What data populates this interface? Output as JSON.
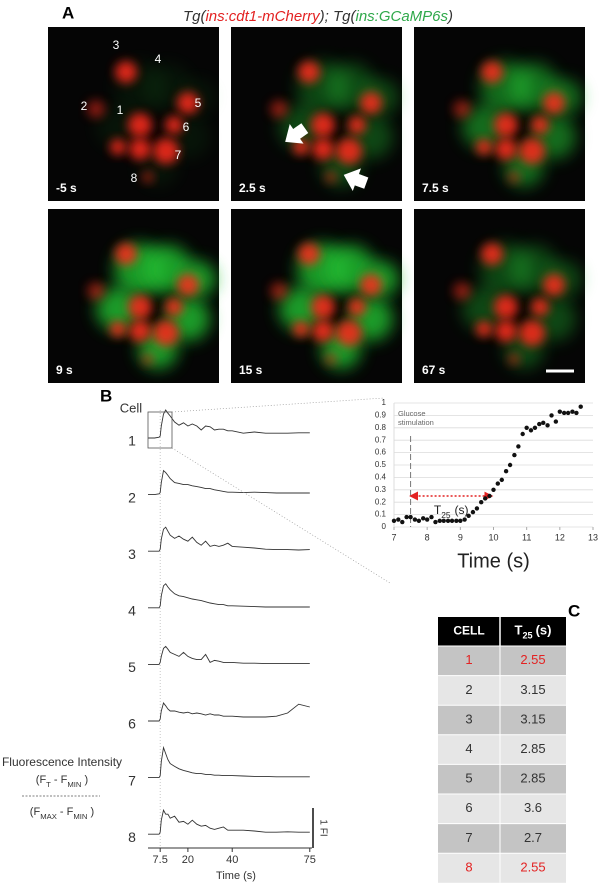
{
  "panel_labels": [
    "A",
    "B",
    "C"
  ],
  "panel_a": {
    "title_parts": [
      "Tg(",
      "ins:cdt1-mCherry",
      "); Tg(",
      "ins:GCaMP6s",
      ")"
    ],
    "title_colors": [
      "#333333",
      "#e32222",
      "#333333",
      "#2fa84a",
      "#333333"
    ],
    "frames": [
      "-5 s",
      "2.5 s",
      "7.5 s",
      "9 s",
      "15 s",
      "67 s"
    ],
    "cell_labels": [
      "3",
      "4",
      "2",
      "1",
      "5",
      "6",
      "7",
      "8"
    ]
  },
  "chart_data": [
    {
      "type": "line",
      "y_header": "Cell",
      "x_label": "Time (s)",
      "x": [
        2,
        5,
        7,
        7.5,
        8,
        9,
        10,
        11,
        12,
        14,
        16,
        18,
        20,
        22,
        24,
        26,
        28,
        30,
        32,
        34,
        36,
        38,
        40,
        45,
        50,
        55,
        60,
        65,
        70,
        75
      ],
      "xlim": [
        2,
        76
      ],
      "xticks": [
        7.5,
        20,
        40,
        75
      ],
      "stimulation_x": 7.5,
      "scale_bar": {
        "value": 1,
        "label": "1 FI"
      },
      "series": [
        {
          "name": "1",
          "color": "#333333",
          "values": [
            0,
            0,
            0.02,
            0.05,
            0.3,
            0.6,
            0.7,
            0.62,
            0.55,
            0.4,
            0.32,
            0.38,
            0.3,
            0.35,
            0.3,
            0.2,
            0.3,
            0.28,
            0.2,
            0.22,
            0.22,
            0.18,
            0.18,
            0.12,
            0.15,
            0.12,
            0.12,
            0.12,
            0.13,
            0.13
          ]
        },
        {
          "name": "2",
          "color": "#333333",
          "values": [
            0,
            0,
            0.02,
            0.05,
            0.3,
            0.6,
            0.55,
            0.48,
            0.4,
            0.3,
            0.28,
            0.25,
            0.25,
            0.22,
            0.2,
            0.18,
            0.15,
            0.15,
            0.12,
            0.1,
            0.08,
            0.06,
            0.06,
            0.05,
            0.06,
            0.05,
            0.04,
            0.04,
            0.04,
            0.04
          ]
        },
        {
          "name": "3",
          "color": "#333333",
          "values": [
            0,
            0,
            0,
            0.05,
            0.3,
            0.55,
            0.6,
            0.5,
            0.4,
            0.32,
            0.38,
            0.3,
            0.25,
            0.35,
            0.22,
            0.15,
            0.25,
            0.12,
            0.15,
            0.12,
            0.15,
            0.2,
            0.12,
            0.1,
            0.08,
            0.05,
            0.04,
            0.04,
            0.03,
            0.04
          ]
        },
        {
          "name": "4",
          "color": "#333333",
          "values": [
            0,
            0,
            0,
            0.05,
            0.3,
            0.55,
            0.6,
            0.52,
            0.45,
            0.35,
            0.3,
            0.28,
            0.25,
            0.22,
            0.2,
            0.18,
            0.15,
            0.12,
            0.1,
            0.08,
            0.08,
            0.05,
            0.05,
            0.04,
            0.03,
            0.02,
            0.02,
            0.02,
            0.02,
            0.02
          ]
        },
        {
          "name": "5",
          "color": "#333333",
          "values": [
            0,
            0,
            0,
            0.05,
            0.2,
            0.4,
            0.45,
            0.38,
            0.3,
            0.25,
            0.2,
            0.3,
            0.2,
            0.15,
            0.12,
            0.12,
            0.25,
            0.05,
            0.1,
            0.08,
            0.05,
            0.05,
            0.05,
            0.03,
            0.03,
            0.02,
            0.02,
            0.02,
            0.02,
            0.02
          ]
        },
        {
          "name": "6",
          "color": "#333333",
          "values": [
            0,
            0,
            0,
            0.05,
            0.25,
            0.45,
            0.38,
            0.3,
            0.25,
            0.25,
            0.22,
            0.2,
            0.22,
            0.18,
            0.2,
            0.18,
            0.15,
            0.18,
            0.15,
            0.15,
            0.12,
            0.12,
            0.12,
            0.1,
            0.1,
            0.1,
            0.12,
            0.2,
            0.42,
            0.35
          ]
        },
        {
          "name": "7",
          "color": "#333333",
          "values": [
            0,
            0,
            0,
            0.05,
            0.4,
            0.75,
            0.6,
            0.45,
            0.35,
            0.28,
            0.22,
            0.18,
            0.15,
            0.12,
            0.1,
            0.1,
            0.08,
            0.08,
            0.06,
            0.06,
            0.05,
            0.05,
            0.05,
            0.04,
            0.03,
            0.03,
            0.02,
            0.02,
            0.02,
            0.02
          ]
        },
        {
          "name": "8",
          "color": "#333333",
          "values": [
            0,
            0,
            0,
            0.05,
            0.35,
            0.6,
            0.5,
            0.5,
            0.4,
            0.45,
            0.3,
            0.32,
            0.25,
            0.35,
            0.25,
            0.2,
            0.22,
            0.15,
            0.12,
            0.15,
            0.18,
            0.1,
            0.1,
            0.1,
            0.08,
            0.05,
            0.05,
            0.06,
            0.05,
            0.05
          ]
        }
      ],
      "y_label": {
        "title": "Fluorescence Intensity",
        "numerator": [
          "(F",
          "T",
          " - F",
          "MIN",
          " )"
        ],
        "denominator": [
          "(F",
          "MAX",
          " - F",
          "MIN",
          " )"
        ]
      }
    },
    {
      "type": "scatter",
      "x_label": "Time (s)",
      "color": "#111111",
      "grid": true,
      "x": [
        7.0,
        7.13,
        7.25,
        7.38,
        7.5,
        7.63,
        7.75,
        7.88,
        8.0,
        8.13,
        8.25,
        8.38,
        8.5,
        8.63,
        8.75,
        8.88,
        9.0,
        9.13,
        9.25,
        9.38,
        9.5,
        9.63,
        9.75,
        9.88,
        10.0,
        10.13,
        10.25,
        10.38,
        10.5,
        10.63,
        10.75,
        10.88,
        11.0,
        11.13,
        11.25,
        11.38,
        11.5,
        11.63,
        11.75,
        11.88,
        12.0,
        12.13,
        12.25,
        12.38,
        12.5,
        12.63
      ],
      "values": [
        0.05,
        0.06,
        0.04,
        0.08,
        0.08,
        0.06,
        0.05,
        0.07,
        0.06,
        0.08,
        0.04,
        0.05,
        0.05,
        0.05,
        0.05,
        0.05,
        0.05,
        0.06,
        0.09,
        0.12,
        0.15,
        0.2,
        0.23,
        0.25,
        0.3,
        0.35,
        0.38,
        0.45,
        0.5,
        0.58,
        0.65,
        0.75,
        0.8,
        0.78,
        0.8,
        0.83,
        0.84,
        0.82,
        0.9,
        0.85,
        0.93,
        0.92,
        0.92,
        0.93,
        0.92,
        0.97
      ],
      "xlim": [
        7,
        13
      ],
      "ylim": [
        0,
        1
      ],
      "xticks": [
        7,
        8,
        9,
        10,
        11,
        12,
        13
      ],
      "yticks": [
        0,
        0.1,
        0.2,
        0.3,
        0.4,
        0.5,
        0.6,
        0.7,
        0.8,
        0.9,
        1
      ],
      "stimulation": {
        "x": 7.5,
        "label_lines": [
          "Glucose",
          "stimulation"
        ]
      },
      "t25_arrow": {
        "x": [
          7.5,
          9.95
        ],
        "y": 0.25,
        "label": "T",
        "sub": "25",
        "unit": "(s)",
        "color": "#e32222"
      }
    }
  ],
  "table": {
    "header": {
      "cell": "CELL",
      "t": "T",
      "t_sub": "25",
      "t_unit": "(s)"
    },
    "rows": [
      [
        "1",
        "2.55"
      ],
      [
        "2",
        "3.15"
      ],
      [
        "3",
        "3.15"
      ],
      [
        "4",
        "2.85"
      ],
      [
        "5",
        "2.85"
      ],
      [
        "6",
        "3.6"
      ],
      [
        "7",
        "2.7"
      ],
      [
        "8",
        "2.55"
      ]
    ],
    "highlight_rows": [
      0,
      7
    ],
    "highlight_color": "#e32222",
    "row_colors": [
      "#c4c4c4",
      "#e6e6e6"
    ]
  }
}
